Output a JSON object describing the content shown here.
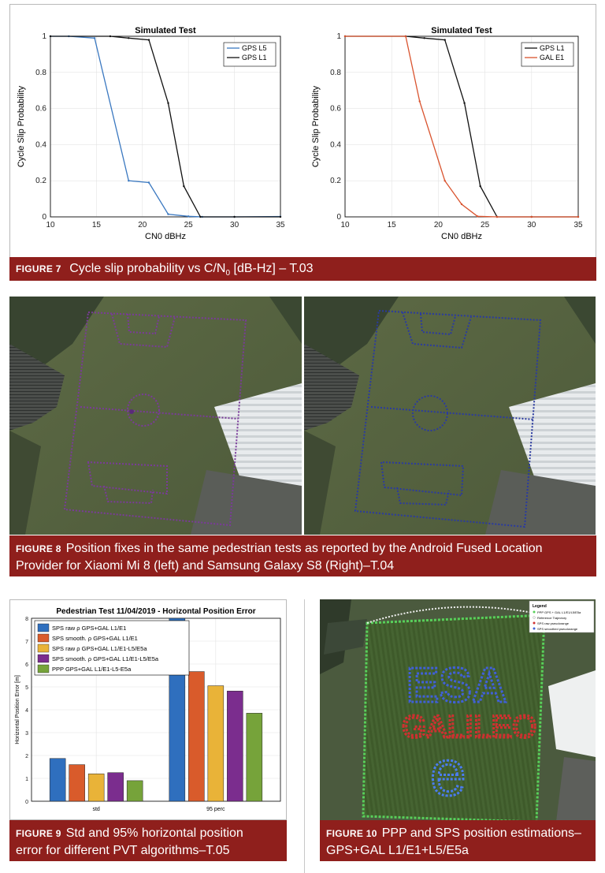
{
  "fig7": {
    "caption_label": "FIGURE 7",
    "caption_text": "Cycle slip probability vs C/N",
    "caption_sub": "0",
    "caption_text_end": " [dB-Hz] – T.03",
    "left_chart": {
      "title": "Simulated Test",
      "xlabel": "CN0 dBHz",
      "ylabel": "Cycle Slip Probability"
    },
    "right_chart": {
      "title": "Simulated Test",
      "xlabel": "CN0 dBHz",
      "ylabel": "Cycle Slip Probability"
    }
  },
  "fig8": {
    "caption_label": "FIGURE 8",
    "caption_line1": "Position fixes in the same pedestrian tests as reported by the Android Fused Location",
    "caption_line2": "Provider for Xiaomi Mi 8 (left) and Samsung Galaxy S8 (Right)–T.04",
    "track_color_left": "#7a3a9a",
    "track_color_right": "#2a3aa0"
  },
  "fig9": {
    "caption_label": "FIGURE 9",
    "caption_line1": "Std and 95% horizontal position",
    "caption_line2": "error for different PVT algorithms–T.05"
  },
  "fig10": {
    "caption_label": "FIGURE 10",
    "caption_line1": "PPP and SPS position estimations–",
    "caption_line2": "GPS+GAL L1/E1+L5/E5a",
    "legend_title": "Legend",
    "legend_items": [
      "PPP GPS + GAL L1/E1/L5/E5a",
      "Reference Trajectory",
      "SPS raw pseudorange",
      "SPS smoothed pseudorange"
    ],
    "shape_text_1": "ESA",
    "shape_text_2": "GALILEO",
    "shape_text_3": "e"
  },
  "chart_data": [
    {
      "type": "line",
      "title": "Simulated Test",
      "xlabel": "CN0 dBHz",
      "ylabel": "Cycle Slip Probability",
      "xlim": [
        10,
        35
      ],
      "ylim": [
        0,
        1
      ],
      "xticks": [
        10,
        15,
        20,
        25,
        30,
        35
      ],
      "yticks": [
        0,
        0.2,
        0.4,
        0.6,
        0.8,
        1
      ],
      "grid": true,
      "legend_position": "top-right",
      "series": [
        {
          "name": "GPS L5",
          "color": "#3a78c0",
          "x": [
            10,
            12,
            14.8,
            18.5,
            20.7,
            22.8,
            25,
            26.5,
            30,
            35
          ],
          "y": [
            1,
            1,
            0.99,
            0.2,
            0.19,
            0.015,
            0.003,
            0.0,
            0.0,
            0.002
          ]
        },
        {
          "name": "GPS L1",
          "color": "#111111",
          "x": [
            10,
            16.5,
            18.5,
            20.7,
            22.8,
            24.5,
            26.3,
            30,
            35
          ],
          "y": [
            1,
            1,
            0.99,
            0.98,
            0.63,
            0.17,
            0.0,
            0.0,
            0.0
          ]
        }
      ]
    },
    {
      "type": "line",
      "title": "Simulated Test",
      "xlabel": "CN0 dBHz",
      "ylabel": "Cycle Slip Probability",
      "xlim": [
        10,
        35
      ],
      "ylim": [
        0,
        1
      ],
      "xticks": [
        10,
        15,
        20,
        25,
        30,
        35
      ],
      "yticks": [
        0,
        0.2,
        0.4,
        0.6,
        0.8,
        1
      ],
      "grid": true,
      "legend_position": "top-right",
      "series": [
        {
          "name": "GPS L1",
          "color": "#111111",
          "x": [
            10,
            16.5,
            18.5,
            20.7,
            22.8,
            24.5,
            26.3,
            30,
            35
          ],
          "y": [
            1,
            1,
            0.99,
            0.98,
            0.63,
            0.17,
            0.0,
            0.0,
            0.0
          ]
        },
        {
          "name": "GAL E1",
          "color": "#d9532e",
          "x": [
            10,
            16.5,
            18,
            20.7,
            22.5,
            24.2,
            26.3,
            30,
            35
          ],
          "y": [
            1,
            1,
            0.64,
            0.2,
            0.07,
            0.003,
            0.0,
            0.0,
            0.0
          ]
        }
      ]
    },
    {
      "type": "bar",
      "title": "Pedestrian Test 11/04/2019 - Horizontal Position Error",
      "ylabel": "Horizontal Position Error [m]",
      "categories": [
        "std",
        "95 perc"
      ],
      "ylim": [
        0,
        8
      ],
      "yticks": [
        0,
        1,
        2,
        3,
        4,
        5,
        6,
        7,
        8
      ],
      "grid": true,
      "legend_position": "top-left",
      "series": [
        {
          "name": "SPS raw ρ GPS+GAL L1/E1",
          "color": "#2f6fbe",
          "values": [
            1.87,
            8.0
          ]
        },
        {
          "name": "SPS smooth. ρ GPS+GAL L1/E1",
          "color": "#d95b2b",
          "values": [
            1.6,
            5.67
          ]
        },
        {
          "name": "SPS raw ρ GPS+GAL L1/E1-L5/E5a",
          "color": "#e9b338",
          "values": [
            1.2,
            5.05
          ]
        },
        {
          "name": "SPS smooth. ρ GPS+GAL L1/E1-L5/E5a",
          "color": "#7b2d8e",
          "values": [
            1.25,
            4.82
          ]
        },
        {
          "name": "PPP GPS+GAL L1/E1-L5-E5a",
          "color": "#76a33a",
          "values": [
            0.9,
            3.85
          ]
        }
      ]
    }
  ]
}
